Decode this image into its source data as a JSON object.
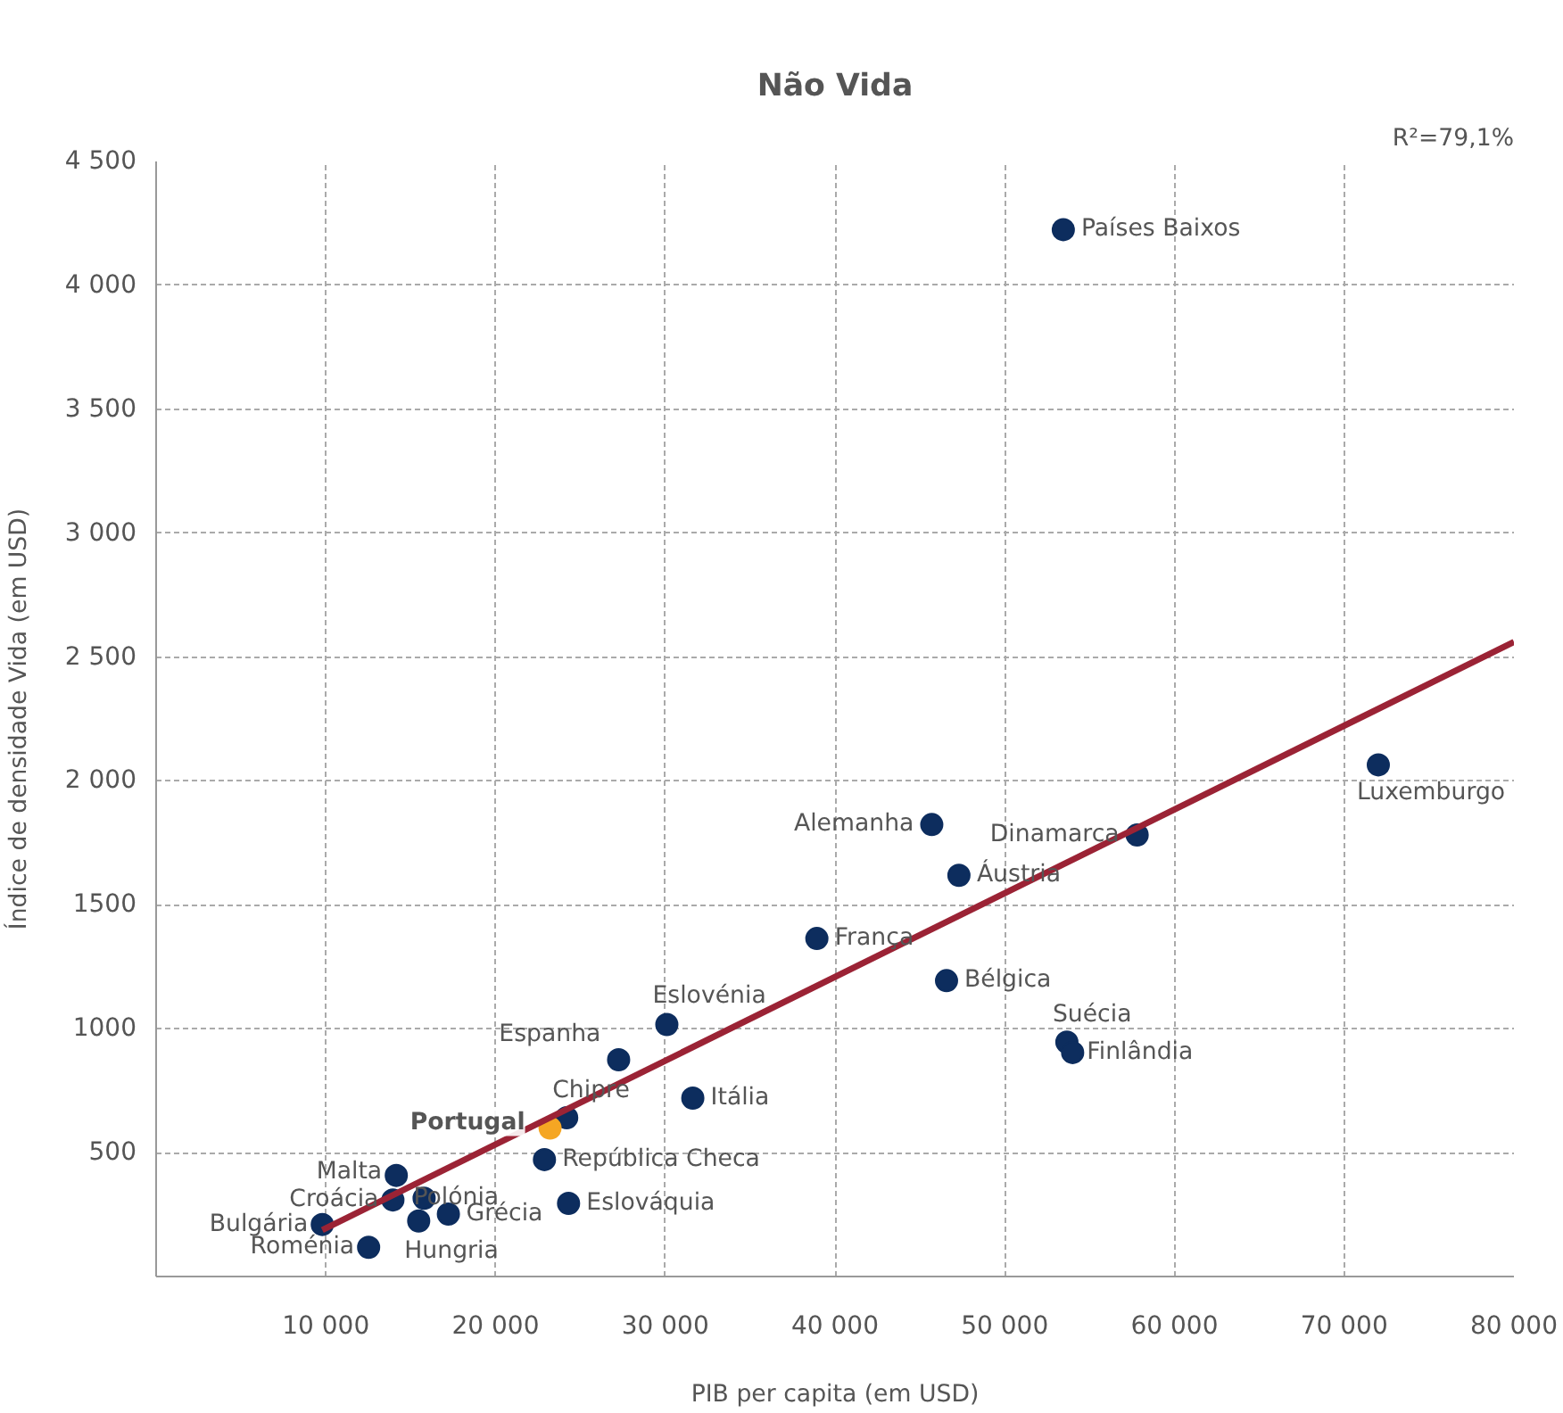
{
  "chart_data": {
    "type": "scatter",
    "title": "Não Vida",
    "xlabel": "PIB per capita (em USD)",
    "ylabel": "Índice de densidade Vida (em USD)",
    "xlim": [
      0,
      80000
    ],
    "ylim": [
      0,
      4500
    ],
    "xticks": [
      {
        "value": 10000,
        "label": "10 000"
      },
      {
        "value": 20000,
        "label": "20 000"
      },
      {
        "value": 30000,
        "label": "30 000"
      },
      {
        "value": 40000,
        "label": "40 000"
      },
      {
        "value": 50000,
        "label": "50 000"
      },
      {
        "value": 60000,
        "label": "60 000"
      },
      {
        "value": 70000,
        "label": "70 000"
      },
      {
        "value": 80000,
        "label": "80 000"
      }
    ],
    "yticks": [
      500,
      1000,
      1500,
      {
        "value": 2000,
        "label": "2 000"
      },
      {
        "value": 2500,
        "label": "2 500"
      },
      {
        "value": 3000,
        "label": "3 000"
      },
      {
        "value": 3500,
        "label": "3 500"
      },
      {
        "value": 4000,
        "label": "4 000"
      },
      {
        "value": 4500,
        "label": "4 500"
      }
    ],
    "grid": true,
    "legend": false,
    "marker": "circle",
    "series": [
      {
        "color": "#0d2d5e",
        "x": [
          53450,
          72010,
          45700,
          57800,
          47300,
          38930,
          46570,
          53660,
          54000,
          30090,
          27250,
          31620,
          24190,
          22880,
          24300,
          14150,
          15790,
          13950,
          17220,
          15470,
          9790,
          12520
        ],
        "values": [
          4225,
          2065,
          1824,
          1782,
          1619,
          1364,
          1194,
          946,
          904,
          1017,
          875,
          720,
          641,
          472,
          295,
          408,
          316,
          309,
          252,
          224,
          210,
          118
        ]
      },
      {
        "name": "Portugal",
        "color": "#f5a623",
        "x": [
          23210
        ],
        "values": [
          599
        ]
      },
      {
        "type": "line",
        "color": "#9b2335",
        "x": [
          9790,
          80000
        ],
        "values": [
          188,
          2561
        ],
        "marker": "none"
      }
    ],
    "annotations": [
      "R²=79,1%",
      {
        "text": "Países Baixos",
        "x": 53450,
        "y": 4225
      },
      {
        "text": "Luxemburgo",
        "x": 72010,
        "y": 2065
      },
      {
        "text": "Alemanha",
        "x": 45700,
        "y": 1824
      },
      {
        "text": "Dinamarca",
        "x": 57800,
        "y": 1782
      },
      {
        "text": "Áustria",
        "x": 47300,
        "y": 1619
      },
      {
        "text": "França",
        "x": 38930,
        "y": 1364
      },
      {
        "text": "Bélgica",
        "x": 46570,
        "y": 1194
      },
      {
        "text": "Suécia",
        "x": 53660,
        "y": 946
      },
      {
        "text": "Finlândia",
        "x": 54000,
        "y": 904
      },
      {
        "text": "Eslovénia",
        "x": 30090,
        "y": 1017
      },
      {
        "text": "Espanha",
        "x": 27250,
        "y": 875
      },
      {
        "text": "Itália",
        "x": 31620,
        "y": 720
      },
      {
        "text": "Chipre",
        "x": 24190,
        "y": 641
      },
      {
        "text": "República Checa",
        "x": 22880,
        "y": 472
      },
      {
        "text": "Eslováquia",
        "x": 24300,
        "y": 295
      },
      {
        "text": "Malta",
        "x": 14150,
        "y": 408
      },
      {
        "text": "Polónia",
        "x": 15790,
        "y": 316
      },
      {
        "text": "Croácia",
        "x": 13950,
        "y": 309
      },
      {
        "text": "Grécia",
        "x": 17220,
        "y": 252
      },
      {
        "text": "Hungria",
        "x": 15470,
        "y": 224
      },
      {
        "text": "Bulgária",
        "x": 9790,
        "y": 210
      },
      {
        "text": "Roménia",
        "x": 12520,
        "y": 118
      }
    ]
  }
}
